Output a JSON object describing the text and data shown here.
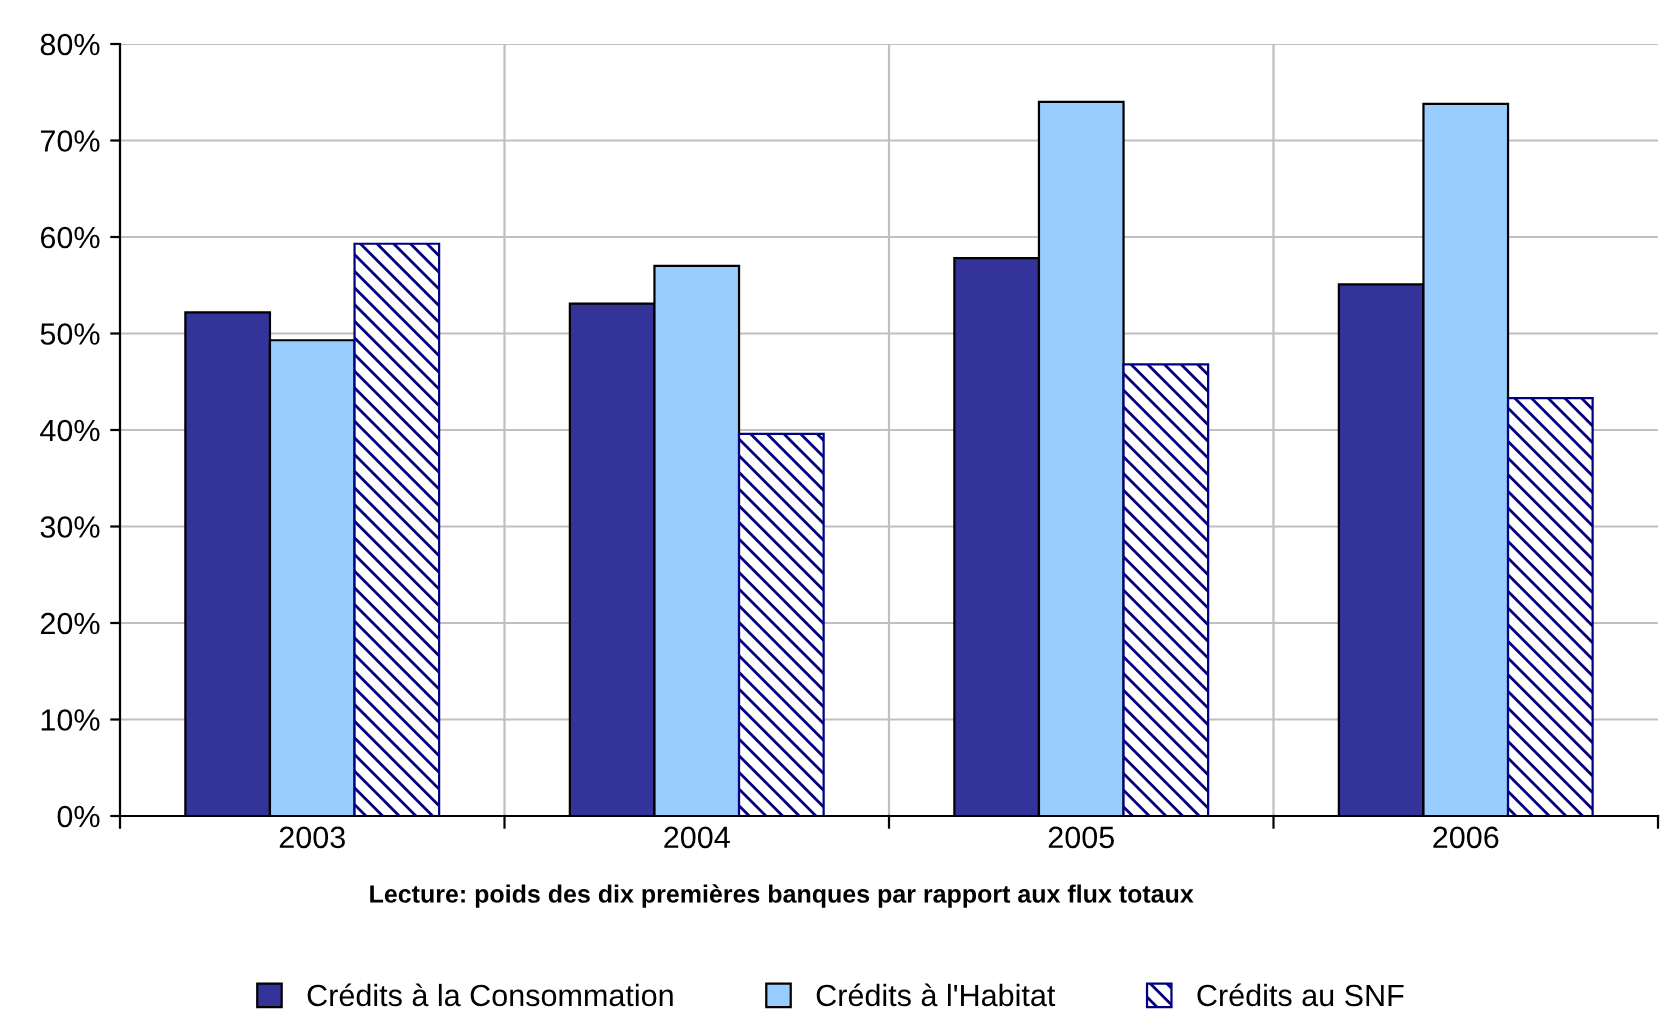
{
  "chart_data": {
    "type": "bar",
    "categories": [
      "2003",
      "2004",
      "2005",
      "2006"
    ],
    "series": [
      {
        "name": "Crédits à la Consommation",
        "color": "#333399",
        "values": [
          52.2,
          53.1,
          57.8,
          55.1
        ]
      },
      {
        "name": "Crédits à l'Habitat",
        "color": "#99ccff",
        "values": [
          49.3,
          57.0,
          74.0,
          73.8
        ]
      },
      {
        "name": "Crédits au SNF",
        "color": "#000080",
        "values": [
          59.3,
          39.6,
          46.8,
          43.3
        ]
      }
    ],
    "ylim": [
      0,
      80
    ],
    "yticks": [
      {
        "value": 0,
        "label": "0%"
      },
      {
        "value": 10,
        "label": "10%"
      },
      {
        "value": 20,
        "label": "20%"
      },
      {
        "value": 30,
        "label": "30%"
      },
      {
        "value": 40,
        "label": "40%"
      },
      {
        "value": 50,
        "label": "50%"
      },
      {
        "value": 60,
        "label": "60%"
      },
      {
        "value": 70,
        "label": "70%"
      },
      {
        "value": 80,
        "label": "80%"
      }
    ],
    "grid": true,
    "legend": "bottom",
    "annotations": [
      "Lecture: poids des dix premières banques par rapport aux flux totaux"
    ]
  }
}
